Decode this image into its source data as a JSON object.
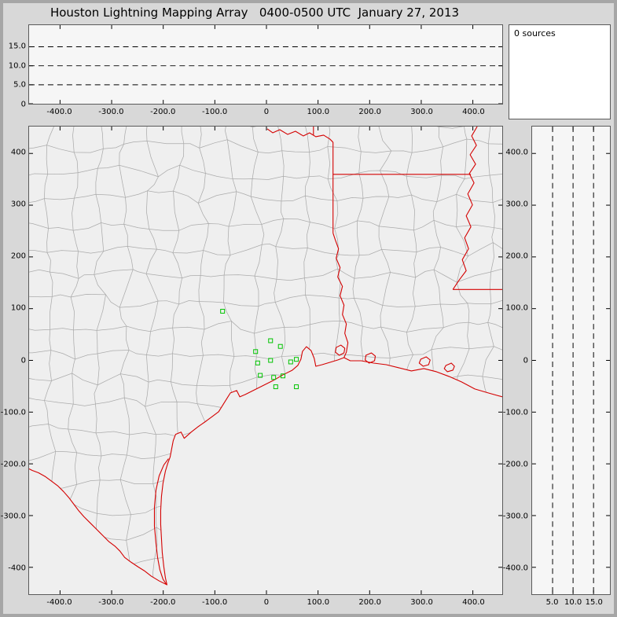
{
  "title": "Houston Lightning Mapping Array   0400-0500 UTC  January 27, 2013",
  "status": {
    "sources_label": "0 sources"
  },
  "colors": {
    "state_border": "#d40000",
    "county_border": "#ababab",
    "station_marker": "#00c400",
    "gridline": "#000000",
    "tick": "#000000"
  },
  "chart_data": [
    {
      "id": "altitude_vs_eastwest",
      "type": "scatter",
      "desc": "upper panel: altitude (km) vs east-west distance (km), dashed gridlines, no source points",
      "x_range": [
        -460,
        457
      ],
      "y_range": [
        0,
        20.7
      ],
      "x_ticks": [
        {
          "label": "-400.0",
          "value": -400
        },
        {
          "label": "-300.0",
          "value": -300
        },
        {
          "label": "-200.0",
          "value": -200
        },
        {
          "label": "-100.0",
          "value": -100
        },
        {
          "label": "0",
          "value": 0
        },
        {
          "label": "100.0",
          "value": 100
        },
        {
          "label": "200.0",
          "value": 200
        },
        {
          "label": "300.0",
          "value": 300
        },
        {
          "label": "400.0",
          "value": 400
        }
      ],
      "y_ticks": [
        {
          "label": "15.0",
          "value": 15
        },
        {
          "label": "10.0",
          "value": 10
        },
        {
          "label": "5.0",
          "value": 5
        },
        {
          "label": "0",
          "value": 0
        }
      ],
      "y_gridlines": [
        5,
        10,
        15
      ],
      "grid_style": "dashed",
      "points": []
    },
    {
      "id": "plan_view_map",
      "type": "scatter",
      "desc": "plan view map of Texas / Louisiana region, km north-south vs km east-west; gray county borders, red state borders and coastline, green LMA station squares, no source points",
      "x_range": [
        -460,
        457
      ],
      "y_range": [
        -452,
        452
      ],
      "x_ticks": [
        {
          "label": "-400.0",
          "value": -400
        },
        {
          "label": "-300.0",
          "value": -300
        },
        {
          "label": "-200.0",
          "value": -200
        },
        {
          "label": "-100.0",
          "value": -100
        },
        {
          "label": "0",
          "value": 0
        },
        {
          "label": "100.0",
          "value": 100
        },
        {
          "label": "200.0",
          "value": 200
        },
        {
          "label": "300.0",
          "value": 300
        },
        {
          "label": "400.0",
          "value": 400
        }
      ],
      "y_ticks": [
        {
          "label": "400",
          "value": 400
        },
        {
          "label": "300",
          "value": 300
        },
        {
          "label": "200",
          "value": 200
        },
        {
          "label": "100",
          "value": 100
        },
        {
          "label": "0",
          "value": 0
        },
        {
          "label": "-100.0",
          "value": -100
        },
        {
          "label": "-200.0",
          "value": -200
        },
        {
          "label": "-300.0",
          "value": -300
        },
        {
          "label": "-400",
          "value": -400
        }
      ],
      "stations_km": [
        {
          "x": -85,
          "y": 95
        },
        {
          "x": 8,
          "y": 38
        },
        {
          "x": -21,
          "y": 17
        },
        {
          "x": 27,
          "y": 27
        },
        {
          "x": -17,
          "y": -5
        },
        {
          "x": 8,
          "y": 0
        },
        {
          "x": 47,
          "y": -3
        },
        {
          "x": 58,
          "y": 2
        },
        {
          "x": -12,
          "y": -29
        },
        {
          "x": 14,
          "y": -33
        },
        {
          "x": 32,
          "y": -30
        },
        {
          "x": 18,
          "y": -51
        },
        {
          "x": 58,
          "y": -51
        }
      ],
      "points": []
    },
    {
      "id": "northsouth_vs_altitude",
      "type": "scatter",
      "desc": "right panel: km north-south vs altitude (km), dashed vertical gridlines, no source points",
      "x_range": [
        0,
        19
      ],
      "y_range": [
        -452,
        452
      ],
      "x_ticks": [
        {
          "label": "5.0",
          "value": 5
        },
        {
          "label": "10.0",
          "value": 10
        },
        {
          "label": "15.0",
          "value": 15
        }
      ],
      "y_ticks": [
        {
          "label": "400.0",
          "value": 400
        },
        {
          "label": "300.0",
          "value": 300
        },
        {
          "label": "200.0",
          "value": 200
        },
        {
          "label": "100.0",
          "value": 100
        },
        {
          "label": "0",
          "value": 0
        },
        {
          "label": "-100.0",
          "value": -100
        },
        {
          "label": "-200.0",
          "value": -200
        },
        {
          "label": "-300.0",
          "value": -300
        },
        {
          "label": "-400.0",
          "value": -400
        }
      ],
      "x_gridlines": [
        5,
        10,
        15
      ],
      "grid_style": "dashed",
      "points": []
    }
  ]
}
